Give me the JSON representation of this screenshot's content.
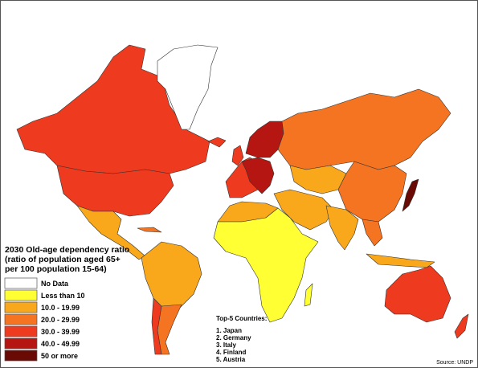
{
  "legend": {
    "title_lines": [
      "2030 Old-age dependency ratio",
      "(ratio of population aged 65+",
      "per 100 population 15-64)"
    ],
    "items": [
      {
        "label": "No Data",
        "color": "#ffffff"
      },
      {
        "label": "Less than 10",
        "color": "#ffff33"
      },
      {
        "label": "10.0 - 19.99",
        "color": "#f9a81b"
      },
      {
        "label": "20.0 - 29.99",
        "color": "#f47421"
      },
      {
        "label": "30.0 - 39.99",
        "color": "#ee3a1e"
      },
      {
        "label": "40.0 - 49.99",
        "color": "#b51612"
      },
      {
        "label": "50 or more",
        "color": "#6a0a05"
      }
    ]
  },
  "top_countries": {
    "heading": "Top-5 Countries:",
    "items": [
      "1. Japan",
      "2. Germany",
      "3. Italy",
      "4. Finland",
      "5. Austria"
    ]
  },
  "source": "Source: UNDP"
}
